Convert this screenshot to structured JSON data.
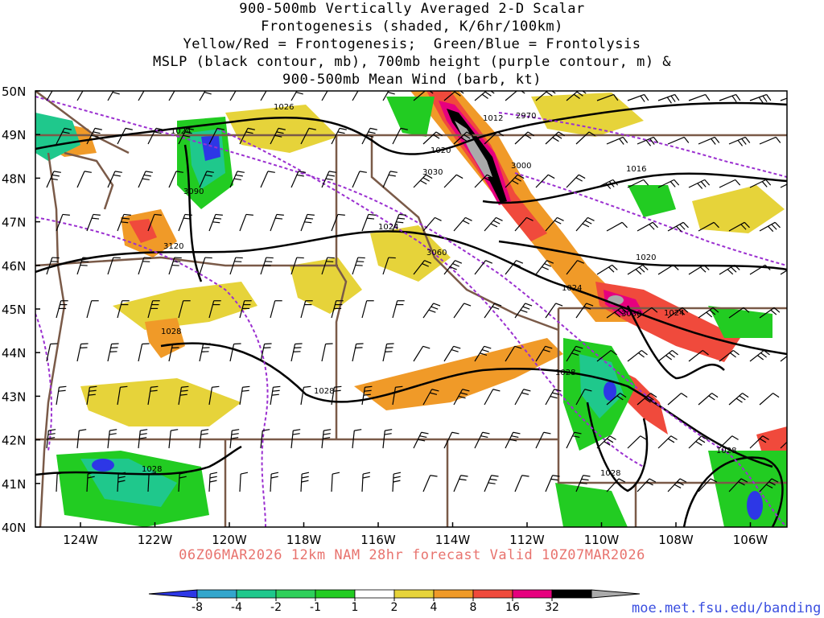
{
  "title": {
    "lines": [
      "900-500mb Vertically Averaged 2-D Scalar",
      "Frontogenesis (shaded, K/6hr/100km)",
      "Yellow/Red = Frontogenesis;  Green/Blue = Frontolysis",
      "MSLP (black contour, mb), 700mb height (purple contour, m) &",
      "900-500mb Mean Wind (barb, kt)"
    ]
  },
  "footer": "06Z06MAR2026 12km NAM 28hr forecast Valid 10Z07MAR2026",
  "credit": "moe.met.fsu.edu/banding",
  "map": {
    "lat_labels": [
      "50N",
      "49N",
      "48N",
      "47N",
      "46N",
      "45N",
      "44N",
      "43N",
      "42N",
      "41N",
      "40N"
    ],
    "lon_labels": [
      "124W",
      "122W",
      "120W",
      "118W",
      "116W",
      "114W",
      "112W",
      "110W",
      "108W",
      "106W"
    ],
    "mslp_labels": [
      "1026",
      "1024",
      "1020",
      "1012",
      "1016",
      "1024",
      "1020",
      "1024",
      "1024",
      "1028",
      "1028",
      "1028",
      "1028",
      "1028",
      "1028"
    ],
    "height_labels": [
      "2970",
      "3000",
      "3030",
      "3090",
      "3120",
      "3060",
      "3030"
    ]
  },
  "colorbar": {
    "labels": [
      "-8",
      "-4",
      "-2",
      "-1",
      "1",
      "2",
      "4",
      "8",
      "16",
      "32"
    ],
    "colors": [
      "#2d37e6",
      "#33a6cc",
      "#1fc88c",
      "#2ed05a",
      "#22cc22",
      "#ffffff",
      "#e6d33a",
      "#f09a28",
      "#f04a3c",
      "#e6007e",
      "#000000",
      "#aaaaaa"
    ]
  },
  "colors": {
    "mslp": "#000000",
    "height": "#9b30d0",
    "borders": "#7a5a48",
    "footer": "#e8736e",
    "credit": "#3b4fe0"
  }
}
